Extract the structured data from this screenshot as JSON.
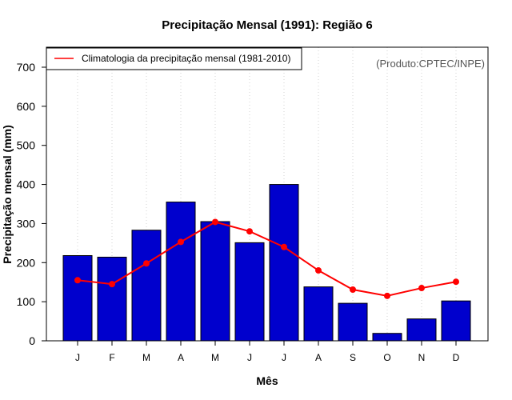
{
  "chart_data": {
    "type": "bar",
    "title": "Precipitação Mensal (1991): Região 6",
    "xlabel": "Mês",
    "ylabel": "Precipitação mensal (mm)",
    "ylim": [
      0,
      750
    ],
    "yticks": [
      0,
      100,
      200,
      300,
      400,
      500,
      600,
      700
    ],
    "categories": [
      "J",
      "F",
      "M",
      "A",
      "M",
      "J",
      "J",
      "A",
      "S",
      "O",
      "N",
      "D"
    ],
    "series": [
      {
        "name": "Precipitação mensal (1991)",
        "type": "bar",
        "color": "#0000CD",
        "values": [
          218,
          214,
          283,
          355,
          305,
          251,
          400,
          138,
          96,
          19,
          56,
          102
        ]
      },
      {
        "name": "Climatologia da precipitação mensal (1981-2010)",
        "type": "line",
        "color": "#FF0000",
        "values": [
          155,
          145,
          198,
          253,
          304,
          280,
          240,
          180,
          131,
          115,
          135,
          151
        ]
      }
    ],
    "legend": {
      "entries": [
        "Climatologia da precipitação mensal (1981-2010)"
      ],
      "position": "top-left"
    },
    "annotation": "(Produto:CPTEC/INPE)",
    "vertical_gridlines": true
  }
}
